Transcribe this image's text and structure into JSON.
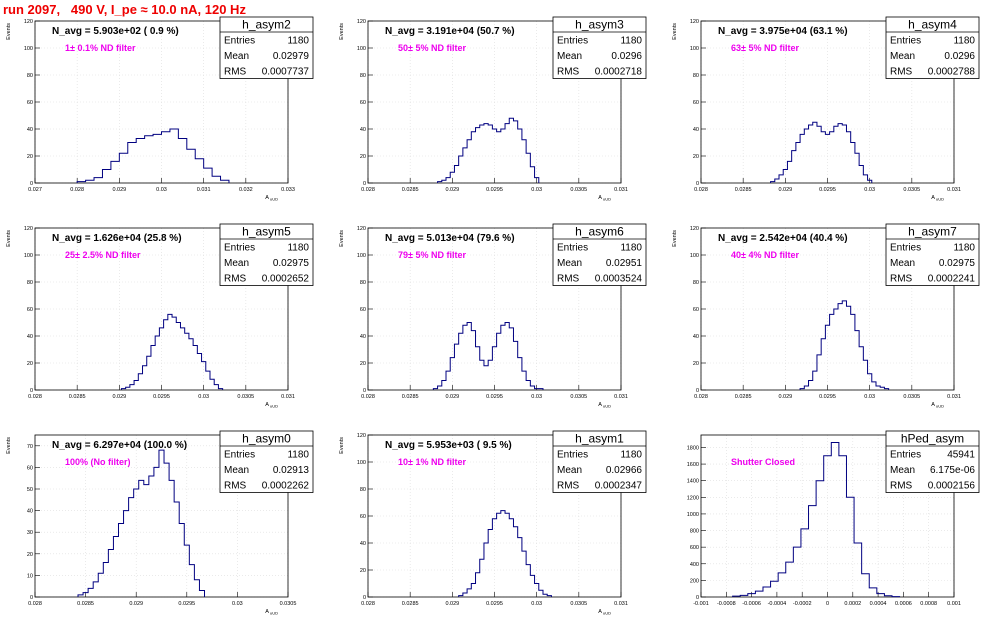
{
  "header": {
    "run_title": "run 2097,   490 V, I_pe ≈ 10.0 nA, 120 Hz"
  },
  "colors": {
    "title": "#ee0000",
    "annotation": "#ee00ee",
    "histogram_line": "#000080",
    "grid": "#dddddd"
  },
  "chart_data": [
    {
      "type": "histogram",
      "name": "h_asym2",
      "title": "N_avg = 5.903e+02 ( 0.9 %)",
      "annotation": "1± 0.1% ND filter",
      "stats": [
        [
          "Entries",
          "1180"
        ],
        [
          "Mean",
          "0.02979"
        ],
        [
          "RMS",
          "0.0007737"
        ]
      ],
      "xlabel": "A_uUD",
      "ylabel": "Events",
      "xlim": [
        0.027,
        0.033
      ],
      "ylim": [
        0,
        120
      ],
      "xticks": [
        "0.027",
        "0.028",
        "0.029",
        "0.03",
        "0.031",
        "0.032",
        "0.033"
      ],
      "yticks": [
        "0",
        "20",
        "40",
        "60",
        "80",
        "100",
        "120"
      ],
      "x": [
        0.0281,
        0.0283,
        0.0285,
        0.0287,
        0.0289,
        0.0291,
        0.0293,
        0.0295,
        0.0297,
        0.0299,
        0.0301,
        0.0303,
        0.0305,
        0.0307,
        0.0309,
        0.0311,
        0.0313,
        0.0315
      ],
      "values": [
        1,
        2,
        4,
        10,
        16,
        22,
        30,
        33,
        35,
        36,
        38,
        40,
        33,
        25,
        18,
        11,
        5,
        2
      ]
    },
    {
      "type": "histogram",
      "name": "h_asym3",
      "title": "N_avg = 3.191e+04 (50.7 %)",
      "annotation": "50± 5% ND filter",
      "stats": [
        [
          "Entries",
          "1180"
        ],
        [
          "Mean",
          "0.0296"
        ],
        [
          "RMS",
          "0.0002718"
        ]
      ],
      "xlabel": "A_uUD",
      "ylabel": "Events",
      "xlim": [
        0.028,
        0.031
      ],
      "ylim": [
        0,
        120
      ],
      "xticks": [
        "0.028",
        "0.0285",
        "0.029",
        "0.0295",
        "0.03",
        "0.0305",
        "0.031"
      ],
      "yticks": [
        "0",
        "20",
        "40",
        "60",
        "80",
        "100",
        "120"
      ],
      "x": [
        0.02885,
        0.0289,
        0.02895,
        0.029,
        0.02905,
        0.0291,
        0.02915,
        0.0292,
        0.02925,
        0.0293,
        0.02935,
        0.0294,
        0.02945,
        0.0295,
        0.02955,
        0.0296,
        0.02965,
        0.0297,
        0.02975,
        0.0298,
        0.02985,
        0.0299,
        0.02995,
        0.03
      ],
      "values": [
        1,
        2,
        4,
        8,
        13,
        20,
        26,
        32,
        38,
        41,
        43,
        44,
        43,
        40,
        38,
        40,
        44,
        48,
        46,
        40,
        32,
        22,
        12,
        4
      ]
    },
    {
      "type": "histogram",
      "name": "h_asym4",
      "title": "N_avg = 3.975e+04 (63.1 %)",
      "annotation": "63± 5% ND filter",
      "stats": [
        [
          "Entries",
          "1180"
        ],
        [
          "Mean",
          "0.0296"
        ],
        [
          "RMS",
          "0.0002788"
        ]
      ],
      "xlabel": "A_uUD",
      "ylabel": "Events",
      "xlim": [
        0.028,
        0.031
      ],
      "ylim": [
        0,
        120
      ],
      "xticks": [
        "0.028",
        "0.0285",
        "0.029",
        "0.0295",
        "0.03",
        "0.0305",
        "0.031"
      ],
      "yticks": [
        "0",
        "20",
        "40",
        "60",
        "80",
        "100",
        "120"
      ],
      "x": [
        0.02885,
        0.0289,
        0.02895,
        0.029,
        0.02905,
        0.0291,
        0.02915,
        0.0292,
        0.02925,
        0.0293,
        0.02935,
        0.0294,
        0.02945,
        0.0295,
        0.02955,
        0.0296,
        0.02965,
        0.0297,
        0.02975,
        0.0298,
        0.02985,
        0.0299,
        0.02995,
        0.03
      ],
      "values": [
        1,
        3,
        6,
        10,
        16,
        24,
        30,
        36,
        40,
        43,
        45,
        42,
        38,
        36,
        38,
        42,
        44,
        43,
        38,
        30,
        22,
        13,
        6,
        2
      ]
    },
    {
      "type": "histogram",
      "name": "h_asym5",
      "title": "N_avg = 1.626e+04 (25.8 %)",
      "annotation": "25± 2.5% ND filter",
      "stats": [
        [
          "Entries",
          "1180"
        ],
        [
          "Mean",
          "0.02975"
        ],
        [
          "RMS",
          "0.0002652"
        ]
      ],
      "xlabel": "A_uUD",
      "ylabel": "Events",
      "xlim": [
        0.028,
        0.031
      ],
      "ylim": [
        0,
        120
      ],
      "xticks": [
        "0.028",
        "0.0285",
        "0.029",
        "0.0295",
        "0.03",
        "0.0305",
        "0.031"
      ],
      "yticks": [
        "0",
        "20",
        "40",
        "60",
        "80",
        "100",
        "120"
      ],
      "x": [
        0.02905,
        0.0291,
        0.02915,
        0.0292,
        0.02925,
        0.0293,
        0.02935,
        0.0294,
        0.02945,
        0.0295,
        0.02955,
        0.0296,
        0.02965,
        0.0297,
        0.02975,
        0.0298,
        0.02985,
        0.0299,
        0.02995,
        0.03,
        0.03005,
        0.0301,
        0.03015,
        0.0302
      ],
      "values": [
        1,
        2,
        4,
        7,
        12,
        18,
        25,
        33,
        40,
        46,
        52,
        56,
        54,
        50,
        46,
        42,
        38,
        33,
        27,
        21,
        14,
        8,
        4,
        1
      ]
    },
    {
      "type": "histogram",
      "name": "h_asym6",
      "title": "N_avg = 5.013e+04 (79.6 %)",
      "annotation": "79± 5% ND filter",
      "stats": [
        [
          "Entries",
          "1180"
        ],
        [
          "Mean",
          "0.02951"
        ],
        [
          "RMS",
          "0.0003524"
        ]
      ],
      "xlabel": "A_uUD",
      "ylabel": "Events",
      "xlim": [
        0.028,
        0.031
      ],
      "ylim": [
        0,
        120
      ],
      "xticks": [
        "0.028",
        "0.0285",
        "0.029",
        "0.0295",
        "0.03",
        "0.0305",
        "0.031"
      ],
      "yticks": [
        "0",
        "20",
        "40",
        "60",
        "80",
        "100",
        "120"
      ],
      "x": [
        0.0288,
        0.02885,
        0.0289,
        0.02895,
        0.029,
        0.02905,
        0.0291,
        0.02915,
        0.0292,
        0.02925,
        0.0293,
        0.02935,
        0.0294,
        0.02945,
        0.0295,
        0.02955,
        0.0296,
        0.02965,
        0.0297,
        0.02975,
        0.0298,
        0.02985,
        0.0299,
        0.02995,
        0.03,
        0.03005
      ],
      "values": [
        1,
        3,
        7,
        14,
        24,
        34,
        42,
        48,
        50,
        44,
        32,
        22,
        18,
        22,
        32,
        42,
        48,
        50,
        46,
        36,
        24,
        14,
        7,
        3,
        1,
        1
      ]
    },
    {
      "type": "histogram",
      "name": "h_asym7",
      "title": "N_avg = 2.542e+04 (40.4 %)",
      "annotation": "40± 4% ND filter",
      "stats": [
        [
          "Entries",
          "1180"
        ],
        [
          "Mean",
          "0.02975"
        ],
        [
          "RMS",
          "0.0002241"
        ]
      ],
      "xlabel": "A_uUD",
      "ylabel": "Events",
      "xlim": [
        0.028,
        0.031
      ],
      "ylim": [
        0,
        120
      ],
      "xticks": [
        "0.028",
        "0.0285",
        "0.029",
        "0.0295",
        "0.03",
        "0.0305",
        "0.031"
      ],
      "yticks": [
        "0",
        "20",
        "40",
        "60",
        "80",
        "100",
        "120"
      ],
      "x": [
        0.0292,
        0.02925,
        0.0293,
        0.02935,
        0.0294,
        0.02945,
        0.0295,
        0.02955,
        0.0296,
        0.02965,
        0.0297,
        0.02975,
        0.0298,
        0.02985,
        0.0299,
        0.02995,
        0.03,
        0.03005,
        0.0301,
        0.03015,
        0.0302
      ],
      "values": [
        1,
        3,
        7,
        14,
        26,
        38,
        48,
        56,
        60,
        64,
        66,
        62,
        56,
        44,
        32,
        22,
        12,
        6,
        3,
        2,
        1
      ]
    },
    {
      "type": "histogram",
      "name": "h_asym0",
      "title": "N_avg = 6.297e+04 (100.0 %)",
      "annotation": "100% (No filter)",
      "stats": [
        [
          "Entries",
          "1180"
        ],
        [
          "Mean",
          "0.02913"
        ],
        [
          "RMS",
          "0.0002262"
        ]
      ],
      "xlabel": "A_uUD",
      "ylabel": "Events",
      "xlim": [
        0.028,
        0.0305
      ],
      "ylim": [
        0,
        75
      ],
      "xticks": [
        "0.028",
        "0.0285",
        "0.029",
        "0.0295",
        "0.03",
        "0.0305"
      ],
      "yticks": [
        "0",
        "10",
        "20",
        "30",
        "40",
        "50",
        "60",
        "70"
      ],
      "x": [
        0.02845,
        0.0285,
        0.02855,
        0.0286,
        0.02865,
        0.0287,
        0.02875,
        0.0288,
        0.02885,
        0.0289,
        0.02895,
        0.029,
        0.02905,
        0.0291,
        0.02915,
        0.0292,
        0.02925,
        0.0293,
        0.02935,
        0.0294,
        0.02945,
        0.0295,
        0.02955,
        0.0296,
        0.02965
      ],
      "values": [
        1,
        2,
        4,
        7,
        11,
        16,
        22,
        28,
        34,
        40,
        46,
        50,
        54,
        52,
        56,
        60,
        68,
        62,
        54,
        44,
        34,
        24,
        15,
        8,
        3
      ]
    },
    {
      "type": "histogram",
      "name": "h_asym1",
      "title": "N_avg = 5.953e+03 ( 9.5 %)",
      "annotation": "10± 1% ND filter",
      "stats": [
        [
          "Entries",
          "1180"
        ],
        [
          "Mean",
          "0.02966"
        ],
        [
          "RMS",
          "0.0002347"
        ]
      ],
      "xlabel": "A_uUD",
      "ylabel": "Events",
      "xlim": [
        0.028,
        0.031
      ],
      "ylim": [
        0,
        120
      ],
      "xticks": [
        "0.028",
        "0.0285",
        "0.029",
        "0.0295",
        "0.03",
        "0.0305",
        "0.031"
      ],
      "yticks": [
        "0",
        "20",
        "40",
        "60",
        "80",
        "100",
        "120"
      ],
      "x": [
        0.0291,
        0.02915,
        0.0292,
        0.02925,
        0.0293,
        0.02935,
        0.0294,
        0.02945,
        0.0295,
        0.02955,
        0.0296,
        0.02965,
        0.0297,
        0.02975,
        0.0298,
        0.02985,
        0.0299,
        0.02995,
        0.03,
        0.03005,
        0.0301,
        0.03015
      ],
      "values": [
        1,
        3,
        6,
        10,
        18,
        28,
        40,
        50,
        58,
        62,
        64,
        62,
        58,
        52,
        44,
        34,
        24,
        16,
        10,
        5,
        2,
        1
      ]
    },
    {
      "type": "histogram",
      "name": "hPed_asym",
      "title": "",
      "annotation": "Shutter Closed",
      "stats": [
        [
          "Entries",
          "45941"
        ],
        [
          "Mean",
          "6.175e-06"
        ],
        [
          "RMS",
          "0.0002156"
        ]
      ],
      "xlabel": "",
      "ylabel": "",
      "xlim": [
        -0.001,
        0.001
      ],
      "ylim": [
        0,
        1950
      ],
      "xticks": [
        "-0.001",
        "-0.0008",
        "-0.0006",
        "-0.0004",
        "-0.0002",
        "0",
        "0.0002",
        "0.0004",
        "0.0006",
        "0.0008",
        "0.001"
      ],
      "yticks": [
        "0",
        "200",
        "400",
        "600",
        "800",
        "1000",
        "1200",
        "1400",
        "1600",
        "1800"
      ],
      "x": [
        -0.00072,
        -0.00066,
        -0.0006,
        -0.00054,
        -0.00048,
        -0.00042,
        -0.00036,
        -0.0003,
        -0.00024,
        -0.00018,
        -0.00012,
        -6e-05,
        0,
        6e-05,
        0.00012,
        0.00018,
        0.00024,
        0.0003,
        0.00036,
        0.00042,
        0.00048,
        0.00054
      ],
      "values": [
        10,
        20,
        40,
        70,
        120,
        190,
        290,
        420,
        600,
        820,
        1100,
        1400,
        1700,
        1860,
        1700,
        1200,
        650,
        280,
        110,
        40,
        15,
        5
      ]
    }
  ]
}
